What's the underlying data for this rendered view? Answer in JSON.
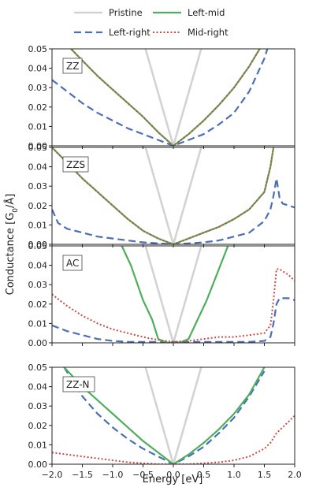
{
  "chart_data": {
    "type": "line",
    "xlabel": "Energy [eV]",
    "ylabel_parts": [
      "Conductance [G",
      "0",
      "/Å]"
    ],
    "xlim": [
      -2.0,
      2.0
    ],
    "ylim": [
      0.0,
      0.05
    ],
    "xticks": [
      -2.0,
      -1.5,
      -1.0,
      -0.5,
      0.0,
      0.5,
      1.0,
      1.5,
      2.0
    ],
    "xtick_labels": [
      "−2.0",
      "−1.5",
      "−1.0",
      "−0.5",
      "0.0",
      "0.5",
      "1.0",
      "1.5",
      "2.0"
    ],
    "yticks": [
      0.0,
      0.01,
      0.02,
      0.03,
      0.04,
      0.05
    ],
    "ytick_labels": [
      "0.00",
      "0.01",
      "0.02",
      "0.03",
      "0.04",
      "0.05"
    ],
    "legend": {
      "placement": "top",
      "entries": [
        {
          "name": "Pristine",
          "color": "#d3d3d3",
          "style": "solid"
        },
        {
          "name": "Left-mid",
          "color": "#4daf5b",
          "style": "solid"
        },
        {
          "name": "Left-right",
          "color": "#4a6fb5",
          "style": "dashed"
        },
        {
          "name": "Mid-right",
          "color": "#c84c44",
          "style": "dotted"
        }
      ]
    },
    "panels": [
      {
        "label": "ZZ",
        "series": [
          {
            "name": "Pristine",
            "x": [
              -0.55,
              0.0,
              0.55
            ],
            "y": [
              0.06,
              0.0,
              0.06
            ]
          },
          {
            "name": "Left-mid",
            "x": [
              -2.0,
              -1.75,
              -1.5,
              -1.25,
              -1.0,
              -0.75,
              -0.5,
              -0.25,
              0.0,
              0.25,
              0.5,
              0.75,
              1.0,
              1.25,
              1.5
            ],
            "y": [
              0.06,
              0.052,
              0.044,
              0.036,
              0.029,
              0.022,
              0.015,
              0.007,
              0.0,
              0.006,
              0.013,
              0.021,
              0.03,
              0.041,
              0.054
            ]
          },
          {
            "name": "Mid-right",
            "x": [
              -2.0,
              -1.75,
              -1.5,
              -1.25,
              -1.0,
              -0.75,
              -0.5,
              -0.25,
              0.0,
              0.25,
              0.5,
              0.75,
              1.0,
              1.25,
              1.5
            ],
            "y": [
              0.06,
              0.052,
              0.044,
              0.036,
              0.029,
              0.022,
              0.015,
              0.007,
              0.0,
              0.006,
              0.013,
              0.021,
              0.03,
              0.041,
              0.054
            ]
          },
          {
            "name": "Left-right",
            "x": [
              -2.0,
              -1.75,
              -1.5,
              -1.25,
              -1.0,
              -0.75,
              -0.5,
              -0.25,
              0.0,
              0.25,
              0.5,
              0.75,
              1.0,
              1.25,
              1.5,
              1.55,
              1.6
            ],
            "y": [
              0.034,
              0.028,
              0.022,
              0.017,
              0.013,
              0.009,
              0.006,
              0.003,
              0.0,
              0.003,
              0.006,
              0.011,
              0.017,
              0.028,
              0.045,
              0.05,
              0.06
            ]
          }
        ]
      },
      {
        "label": "ZZS",
        "series": [
          {
            "name": "Pristine",
            "x": [
              -0.55,
              0.0,
              0.55
            ],
            "y": [
              0.06,
              0.0,
              0.06
            ]
          },
          {
            "name": "Left-mid",
            "x": [
              -2.0,
              -1.75,
              -1.5,
              -1.25,
              -1.0,
              -0.75,
              -0.5,
              -0.25,
              0.0,
              0.25,
              0.5,
              0.75,
              1.0,
              1.25,
              1.5,
              1.6,
              1.65
            ],
            "y": [
              0.05,
              0.042,
              0.034,
              0.027,
              0.02,
              0.013,
              0.007,
              0.003,
              0.0,
              0.003,
              0.006,
              0.009,
              0.013,
              0.018,
              0.027,
              0.04,
              0.05
            ]
          },
          {
            "name": "Mid-right",
            "x": [
              -2.0,
              -1.75,
              -1.5,
              -1.25,
              -1.0,
              -0.75,
              -0.5,
              -0.25,
              0.0,
              0.25,
              0.5,
              0.75,
              1.0,
              1.25,
              1.5,
              1.6,
              1.65
            ],
            "y": [
              0.05,
              0.042,
              0.034,
              0.027,
              0.02,
              0.013,
              0.007,
              0.003,
              0.0,
              0.003,
              0.006,
              0.009,
              0.013,
              0.018,
              0.027,
              0.04,
              0.05
            ]
          },
          {
            "name": "Left-right",
            "x": [
              -2.0,
              -1.9,
              -1.75,
              -1.5,
              -1.25,
              -1.0,
              -0.75,
              -0.5,
              -0.25,
              0.0,
              0.25,
              0.5,
              0.75,
              1.0,
              1.25,
              1.5,
              1.6,
              1.65,
              1.7,
              1.75,
              1.8,
              2.0
            ],
            "y": [
              0.018,
              0.011,
              0.008,
              0.006,
              0.004,
              0.003,
              0.002,
              0.001,
              0.0005,
              0.0,
              0.0005,
              0.001,
              0.002,
              0.004,
              0.006,
              0.012,
              0.018,
              0.025,
              0.034,
              0.024,
              0.021,
              0.019
            ]
          }
        ]
      },
      {
        "label": "AC",
        "series": [
          {
            "name": "Pristine",
            "x": [
              -0.55,
              0.0,
              0.55
            ],
            "y": [
              0.06,
              0.0,
              0.06
            ]
          },
          {
            "name": "Left-mid",
            "x": [
              -0.85,
              -0.7,
              -0.5,
              -0.35,
              -0.25,
              -0.1,
              0.0,
              0.1,
              0.25,
              0.4,
              0.55,
              0.75,
              0.9
            ],
            "y": [
              0.05,
              0.04,
              0.022,
              0.012,
              0.002,
              0.0,
              0.0,
              0.0,
              0.002,
              0.012,
              0.022,
              0.038,
              0.05
            ]
          },
          {
            "name": "Mid-right",
            "x": [
              -2.0,
              -1.75,
              -1.5,
              -1.25,
              -1.0,
              -0.75,
              -0.5,
              -0.25,
              0.0,
              0.25,
              0.5,
              0.75,
              1.0,
              1.25,
              1.5,
              1.6,
              1.65,
              1.7,
              1.75,
              1.8,
              1.9,
              2.0
            ],
            "y": [
              0.025,
              0.019,
              0.014,
              0.01,
              0.007,
              0.005,
              0.003,
              0.0015,
              0.0005,
              0.001,
              0.002,
              0.003,
              0.003,
              0.004,
              0.005,
              0.009,
              0.022,
              0.038,
              0.038,
              0.037,
              0.035,
              0.032
            ]
          },
          {
            "name": "Left-right",
            "x": [
              -2.0,
              -1.75,
              -1.5,
              -1.25,
              -1.0,
              -0.75,
              -0.5,
              -0.25,
              0.0,
              0.25,
              0.5,
              0.75,
              1.0,
              1.25,
              1.5,
              1.6,
              1.65,
              1.7,
              1.75,
              1.8,
              1.9,
              2.0
            ],
            "y": [
              0.009,
              0.006,
              0.004,
              0.002,
              0.001,
              0.0005,
              0.0005,
              0.0005,
              0.0005,
              0.0005,
              0.0005,
              0.0005,
              0.0005,
              0.0005,
              0.001,
              0.003,
              0.01,
              0.02,
              0.023,
              0.023,
              0.023,
              0.022
            ]
          }
        ]
      },
      {
        "label": "ZZ-N",
        "series": [
          {
            "name": "Pristine",
            "x": [
              -0.55,
              0.0,
              0.55
            ],
            "y": [
              0.06,
              0.0,
              0.06
            ]
          },
          {
            "name": "Left-mid",
            "x": [
              -1.8,
              -1.5,
              -1.25,
              -1.0,
              -0.75,
              -0.5,
              -0.25,
              0.0,
              0.25,
              0.5,
              0.75,
              1.0,
              1.25,
              1.5
            ],
            "y": [
              0.05,
              0.04,
              0.033,
              0.026,
              0.019,
              0.012,
              0.006,
              0.0,
              0.005,
              0.011,
              0.018,
              0.026,
              0.036,
              0.05
            ]
          },
          {
            "name": "Left-right",
            "x": [
              -1.8,
              -1.5,
              -1.25,
              -1.0,
              -0.75,
              -0.5,
              -0.25,
              0.0,
              0.25,
              0.5,
              0.75,
              1.0,
              1.25,
              1.5
            ],
            "y": [
              0.05,
              0.035,
              0.026,
              0.019,
              0.013,
              0.008,
              0.004,
              0.0,
              0.004,
              0.009,
              0.016,
              0.024,
              0.035,
              0.048
            ]
          },
          {
            "name": "Mid-right",
            "x": [
              -2.0,
              -1.75,
              -1.5,
              -1.25,
              -1.0,
              -0.75,
              -0.5,
              -0.25,
              0.0,
              0.25,
              0.5,
              0.75,
              1.0,
              1.25,
              1.5,
              1.6,
              1.7,
              1.8,
              1.9,
              2.0
            ],
            "y": [
              0.006,
              0.005,
              0.004,
              0.003,
              0.002,
              0.001,
              0.0005,
              0.0,
              0.0,
              0.0,
              0.0005,
              0.001,
              0.002,
              0.004,
              0.008,
              0.011,
              0.016,
              0.019,
              0.022,
              0.025
            ]
          }
        ]
      }
    ]
  }
}
